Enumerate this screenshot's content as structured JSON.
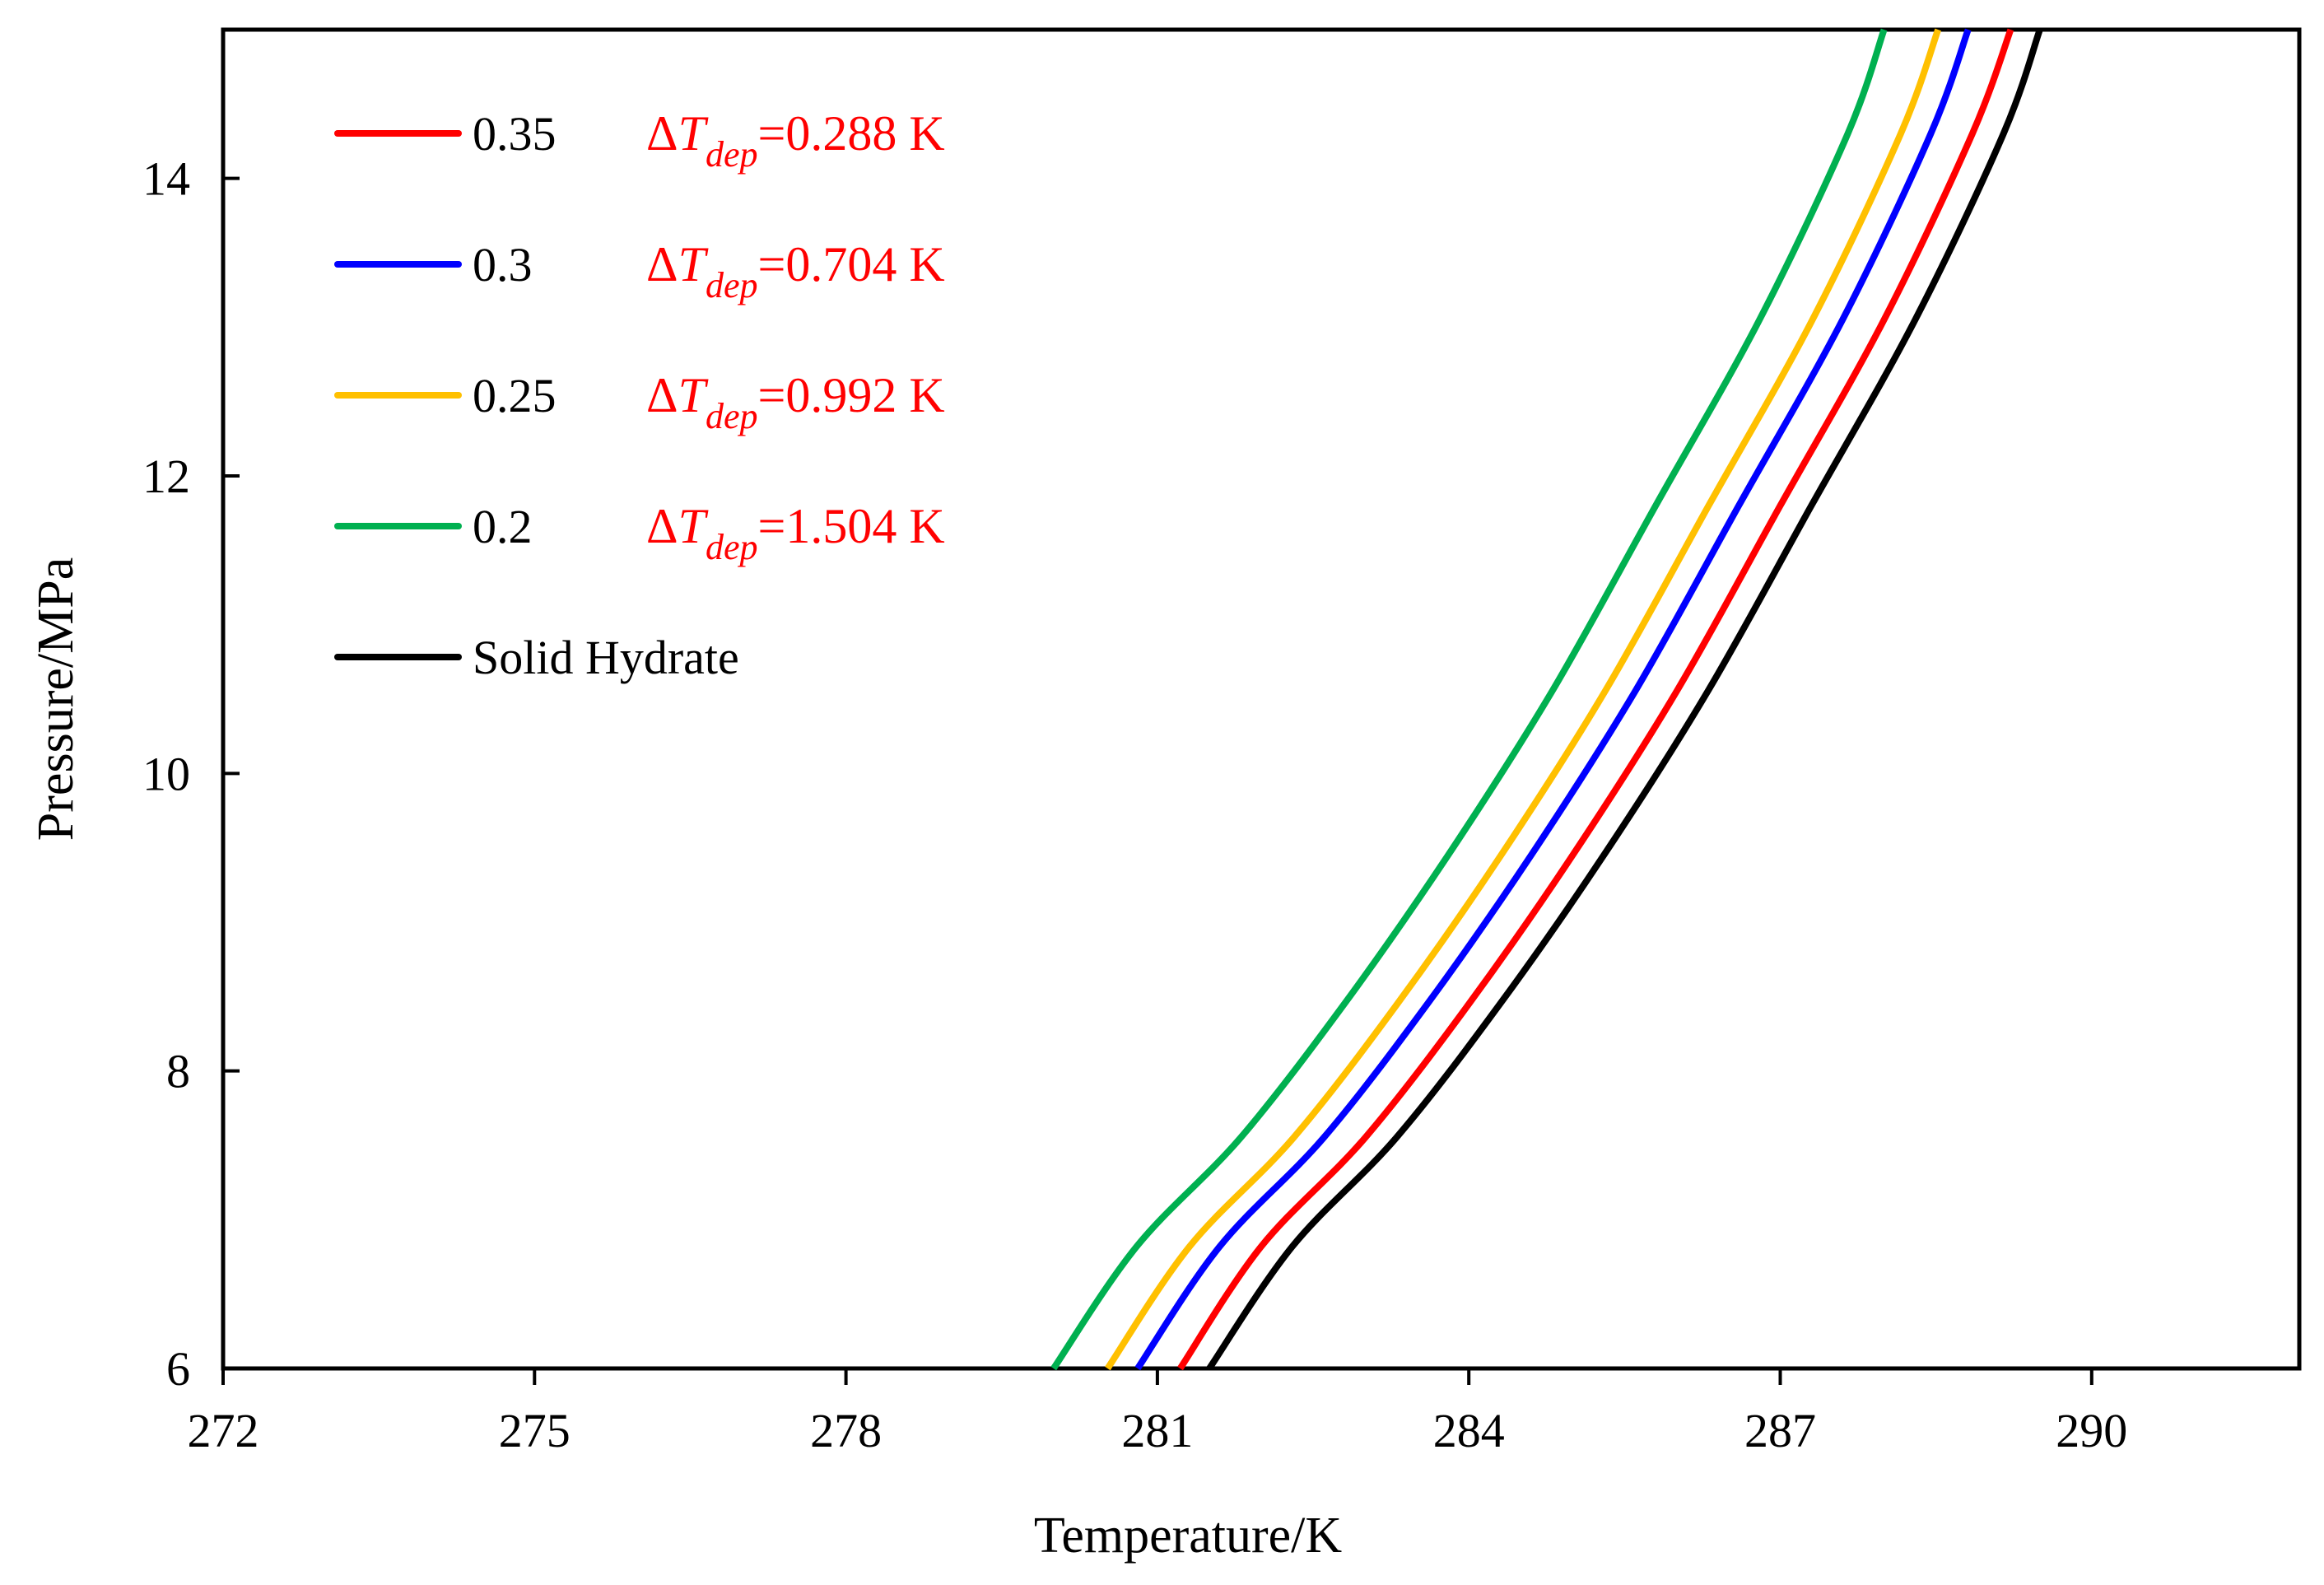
{
  "chart_data": {
    "type": "line",
    "title": "",
    "xlabel": "Temperature/K",
    "ylabel": "Pressure/MPa",
    "xlim": [
      272,
      292
    ],
    "ylim": [
      6,
      15
    ],
    "xticks": [
      272,
      275,
      278,
      281,
      284,
      287,
      290
    ],
    "yticks": [
      6,
      8,
      10,
      12,
      14
    ],
    "xtick_labels": [
      "272",
      "275",
      "278",
      "281",
      "284",
      "287",
      "290"
    ],
    "ytick_labels": [
      "6",
      "8",
      "10",
      "12",
      "14"
    ],
    "grid": false,
    "legend_position": "top-left",
    "annotation_symbol": "Δ",
    "annotation_var": "T",
    "annotation_sub": "dep",
    "series": [
      {
        "name": "0.35",
        "color": "#ff0000",
        "annotation": "=0.288 K",
        "x": [
          281.22,
          282.0,
          283.0,
          284.0,
          285.0,
          286.0,
          287.0,
          288.0,
          288.85,
          289.22
        ],
        "y": [
          6.0,
          6.82,
          7.55,
          8.45,
          9.45,
          10.55,
          11.8,
          13.05,
          14.3,
          15.0
        ]
      },
      {
        "name": "0.3",
        "color": "#0000ff",
        "annotation": "=0.704 K",
        "x": [
          280.81,
          281.6,
          282.6,
          283.6,
          284.6,
          285.6,
          286.6,
          287.6,
          288.45,
          288.81
        ],
        "y": [
          6.0,
          6.82,
          7.55,
          8.45,
          9.45,
          10.55,
          11.8,
          13.05,
          14.3,
          15.0
        ]
      },
      {
        "name": "0.25",
        "color": "#ffc000",
        "annotation": "=0.992 K",
        "x": [
          280.52,
          281.31,
          282.31,
          283.31,
          284.31,
          285.31,
          286.31,
          287.31,
          288.16,
          288.52
        ],
        "y": [
          6.0,
          6.82,
          7.55,
          8.45,
          9.45,
          10.55,
          11.8,
          13.05,
          14.3,
          15.0
        ]
      },
      {
        "name": "0.2",
        "color": "#00b050",
        "annotation": "=1.504 K",
        "x": [
          280.0,
          280.8,
          281.8,
          282.8,
          283.8,
          284.8,
          285.8,
          286.8,
          287.65,
          288.0
        ],
        "y": [
          6.0,
          6.82,
          7.55,
          8.45,
          9.45,
          10.55,
          11.8,
          13.05,
          14.3,
          15.0
        ]
      },
      {
        "name": "Solid Hydrate",
        "color": "#000000",
        "annotation": "",
        "x": [
          281.5,
          282.3,
          283.3,
          284.3,
          285.3,
          286.3,
          287.3,
          288.3,
          289.15,
          289.5
        ],
        "y": [
          6.0,
          6.82,
          7.55,
          8.45,
          9.45,
          10.55,
          11.8,
          13.05,
          14.3,
          15.0
        ]
      }
    ]
  },
  "colors": {
    "annotation": "#ff0000",
    "axis": "#000000",
    "background": "#ffffff"
  }
}
